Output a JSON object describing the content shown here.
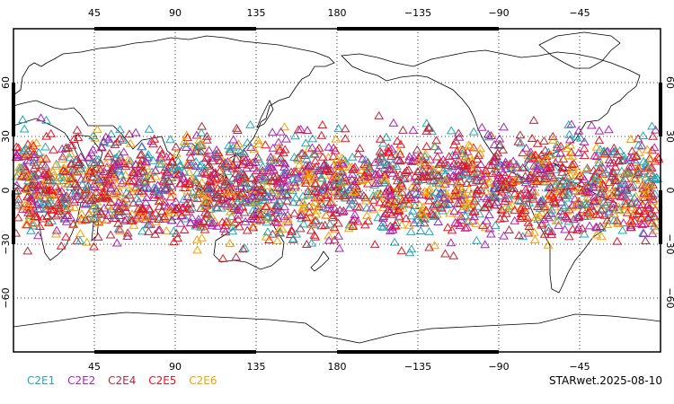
{
  "map": {
    "projection": "equirectangular",
    "center_longitude": 180,
    "lon_range": [
      0,
      360
    ],
    "lat_range": [
      -90,
      90
    ],
    "graticule": "dotted",
    "lon_tick_labels": [
      "45",
      "90",
      "135",
      "180",
      "−135",
      "−90",
      "−45"
    ],
    "lat_tick_labels": [
      "60",
      "30",
      "0",
      "−30",
      "−60"
    ],
    "marker": "triangle-outline",
    "marker_lat_band": [
      -40,
      45
    ]
  },
  "legend": {
    "items": [
      {
        "label": "C2E1",
        "color": "#22a7b5"
      },
      {
        "label": "C2E2",
        "color": "#aa22bb"
      },
      {
        "label": "C2E4",
        "color": "#b8283a"
      },
      {
        "label": "C2E5",
        "color": "#ee1122"
      },
      {
        "label": "C2E6",
        "color": "#f4a000"
      }
    ]
  },
  "footer": {
    "stamp": "STARwet.2025-08-10"
  }
}
